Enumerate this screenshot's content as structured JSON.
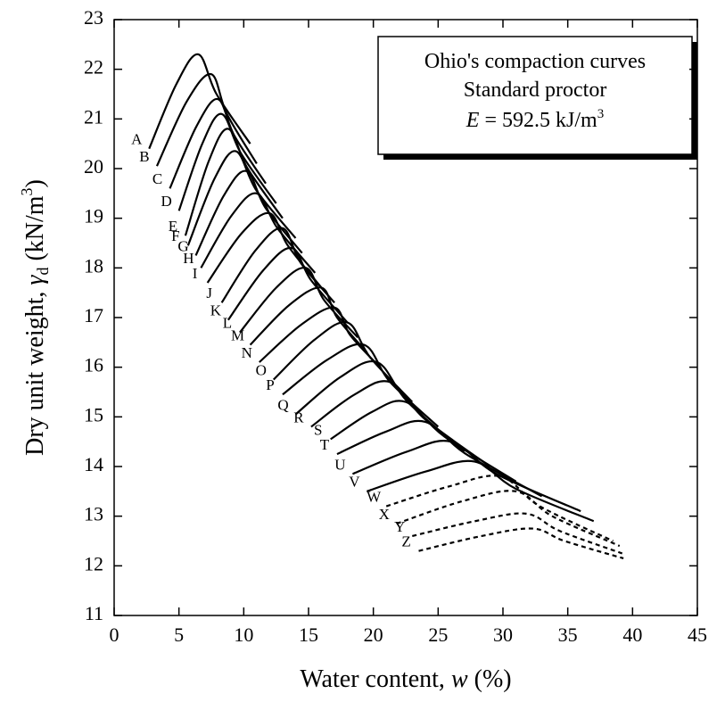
{
  "chart_data": {
    "type": "line",
    "x_label": {
      "pre": "Water content, ",
      "var": "w",
      "post": " (%)"
    },
    "y_label": {
      "pre": "Dry unit weight, ",
      "var": "γ",
      "sub": "d",
      "mid": " (kN/m",
      "sup": "3",
      "post": ")"
    },
    "annotation": {
      "lines": [
        "Ohio's compaction curves",
        "Standard proctor"
      ],
      "var": "E",
      "text": " = 592.5 kJ/m",
      "sup": "3"
    },
    "color": "#000000",
    "xlim": [
      0,
      45
    ],
    "xticks": [
      0,
      5,
      10,
      15,
      20,
      25,
      30,
      35,
      40,
      45
    ],
    "ylim": [
      11,
      23
    ],
    "yticks": [
      11,
      12,
      13,
      14,
      15,
      16,
      17,
      18,
      19,
      20,
      21,
      22,
      23
    ],
    "series": [
      {
        "name": "A",
        "x": [
          2.7,
          4.8,
          6.5,
          7.9,
          10.5
        ],
        "values": [
          20.4,
          21.7,
          22.3,
          21.5,
          20.5
        ]
      },
      {
        "name": "B",
        "x": [
          3.3,
          5.6,
          7.5,
          8.7,
          11
        ],
        "values": [
          20.05,
          21.35,
          21.9,
          21.1,
          20.1
        ]
      },
      {
        "name": "C",
        "x": [
          4.3,
          6.35,
          8,
          9.3,
          11.7
        ],
        "values": [
          19.6,
          20.85,
          21.4,
          20.65,
          19.7
        ]
      },
      {
        "name": "D",
        "x": [
          5,
          6.8,
          8.3,
          9.8,
          12.5
        ],
        "values": [
          19.15,
          20.5,
          21.1,
          20.3,
          19.3
        ]
      },
      {
        "name": "E",
        "x": [
          5.5,
          7.3,
          8.8,
          10.3,
          13
        ],
        "values": [
          18.65,
          20.15,
          20.8,
          20.0,
          19.0
        ]
      },
      {
        "name": "F",
        "x": [
          5.7,
          7.75,
          9.4,
          11.0,
          14
        ],
        "values": [
          18.45,
          19.8,
          20.35,
          19.55,
          18.6
        ]
      },
      {
        "name": "G",
        "x": [
          6.3,
          8.45,
          10.2,
          11.7,
          14.5
        ],
        "values": [
          18.25,
          19.45,
          19.95,
          19.2,
          18.3
        ]
      },
      {
        "name": "H",
        "x": [
          6.7,
          9.05,
          11,
          12.6,
          15.5
        ],
        "values": [
          18.0,
          19.05,
          19.5,
          18.8,
          17.9
        ]
      },
      {
        "name": "I",
        "x": [
          7.2,
          9.85,
          12,
          13.4,
          16
        ],
        "values": [
          17.7,
          18.7,
          19.1,
          18.45,
          17.6
        ]
      },
      {
        "name": "J",
        "x": [
          8.3,
          10.9,
          13,
          14.4,
          17
        ],
        "values": [
          17.3,
          18.35,
          18.8,
          18.1,
          17.3
        ]
      },
      {
        "name": "K",
        "x": [
          8.8,
          11.5,
          13.7,
          15.2,
          18
        ],
        "values": [
          16.95,
          17.95,
          18.4,
          17.75,
          16.9
        ]
      },
      {
        "name": "L",
        "x": [
          9.7,
          12.5,
          14.8,
          16.2,
          18.8
        ],
        "values": [
          16.7,
          17.6,
          18.0,
          17.35,
          16.6
        ]
      },
      {
        "name": "M",
        "x": [
          10.5,
          13.5,
          16,
          17.2,
          19.5
        ],
        "values": [
          16.45,
          17.25,
          17.6,
          17.0,
          16.3
        ]
      },
      {
        "name": "N",
        "x": [
          11.2,
          14.4,
          17,
          18.2,
          20.5
        ],
        "values": [
          16.1,
          16.85,
          17.2,
          16.65,
          16.0
        ]
      },
      {
        "name": "O",
        "x": [
          12.3,
          15.45,
          18,
          19.75,
          23
        ],
        "values": [
          15.75,
          16.55,
          16.9,
          16.2,
          15.3
        ]
      },
      {
        "name": "P",
        "x": [
          13,
          16.45,
          19.3,
          21.3,
          25
        ],
        "values": [
          15.45,
          16.15,
          16.45,
          15.7,
          14.8
        ]
      },
      {
        "name": "Q",
        "x": [
          14,
          17.45,
          20.3,
          22.65,
          27
        ],
        "values": [
          15.05,
          15.8,
          16.1,
          15.3,
          14.3
        ]
      },
      {
        "name": "R",
        "x": [
          15.2,
          18.55,
          21.3,
          24.0,
          29
        ],
        "values": [
          14.8,
          15.45,
          15.7,
          14.95,
          14.0
        ]
      },
      {
        "name": "S",
        "x": [
          16.7,
          19.9,
          22.5,
          25.5,
          31
        ],
        "values": [
          14.55,
          15.1,
          15.3,
          14.6,
          13.7
        ]
      },
      {
        "name": "T",
        "x": [
          17.2,
          20.95,
          24,
          27.15,
          33
        ],
        "values": [
          14.25,
          14.7,
          14.9,
          14.25,
          13.4
        ]
      },
      {
        "name": "U",
        "x": [
          18.4,
          22.6,
          26,
          29.5,
          36
        ],
        "values": [
          13.85,
          14.3,
          14.5,
          13.85,
          13.1
        ]
      },
      {
        "name": "V",
        "x": [
          19.5,
          24.05,
          27.8,
          31.0,
          37
        ],
        "values": [
          13.5,
          13.9,
          14.1,
          13.55,
          12.9
        ]
      },
      {
        "name": "W",
        "dashed": true,
        "x": [
          21,
          25.85,
          29.8,
          32.85,
          38.5
        ],
        "values": [
          13.2,
          13.6,
          13.8,
          13.2,
          12.5
        ]
      },
      {
        "name": "X",
        "dashed": true,
        "x": [
          21.8,
          26.85,
          31,
          33.8,
          39
        ],
        "values": [
          12.85,
          13.3,
          13.5,
          13.0,
          12.4
        ]
      },
      {
        "name": "Y",
        "dashed": true,
        "x": [
          23,
          27.85,
          31.8,
          34.4,
          39.2
        ],
        "values": [
          12.6,
          12.9,
          13.05,
          12.7,
          12.25
        ]
      },
      {
        "name": "Z",
        "dashed": true,
        "x": [
          23.5,
          28.35,
          32.3,
          34.75,
          39.3
        ],
        "values": [
          12.3,
          12.6,
          12.75,
          12.5,
          12.15
        ]
      }
    ]
  }
}
